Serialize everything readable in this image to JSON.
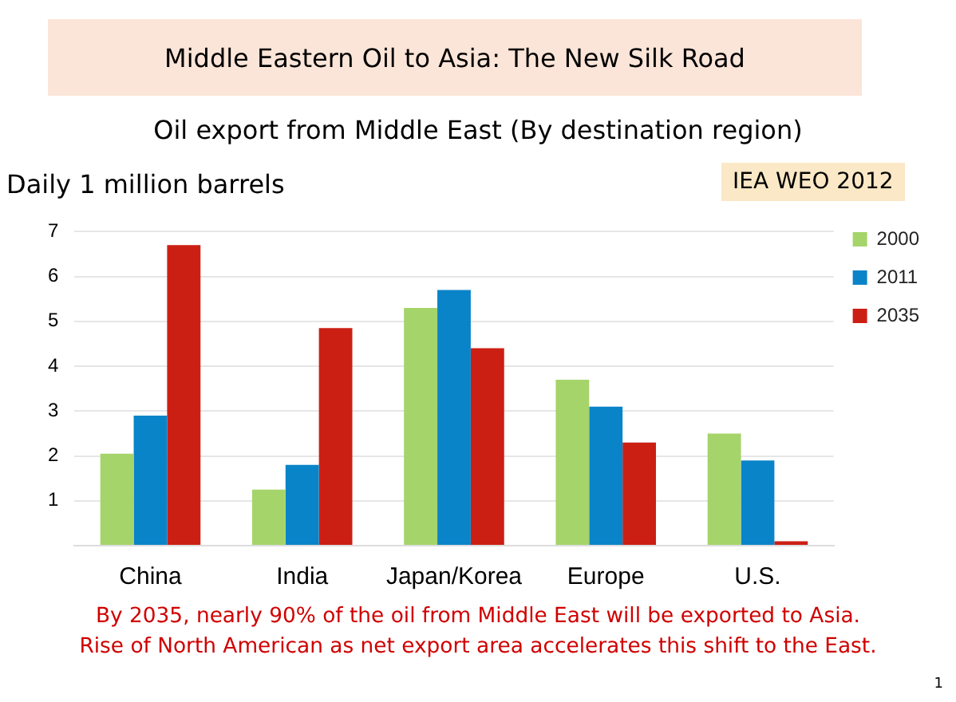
{
  "chart_data": {
    "type": "bar",
    "title": "Middle Eastern Oil to Asia: The New Silk Road",
    "subtitle": "Oil export from Middle East (By destination region)",
    "ylabel": "Daily 1 million barrels",
    "categories": [
      "China",
      "India",
      "Japan/Korea",
      "Europe",
      "U.S."
    ],
    "series": [
      {
        "name": "2000",
        "color": "#a5d46a",
        "values": [
          2.05,
          1.25,
          5.3,
          3.7,
          2.5
        ]
      },
      {
        "name": "2011",
        "color": "#0a84c8",
        "values": [
          2.9,
          1.8,
          5.7,
          3.1,
          1.9
        ]
      },
      {
        "name": "2035",
        "color": "#cc1f14",
        "values": [
          6.7,
          4.85,
          4.4,
          2.3,
          0.1
        ]
      }
    ],
    "ylim": [
      0,
      7
    ],
    "yticks": [
      {
        "value": 0,
        "label": null
      },
      1,
      2,
      3,
      4,
      5,
      6,
      7
    ],
    "grid": "y",
    "legend": "top right",
    "annotations": [
      "IEA WEO 2012",
      "By 2035, nearly 90% of the oil from Middle East will be exported to Asia.",
      "Rise of North American as net export area accelerates this shift to the East.",
      "1"
    ]
  }
}
